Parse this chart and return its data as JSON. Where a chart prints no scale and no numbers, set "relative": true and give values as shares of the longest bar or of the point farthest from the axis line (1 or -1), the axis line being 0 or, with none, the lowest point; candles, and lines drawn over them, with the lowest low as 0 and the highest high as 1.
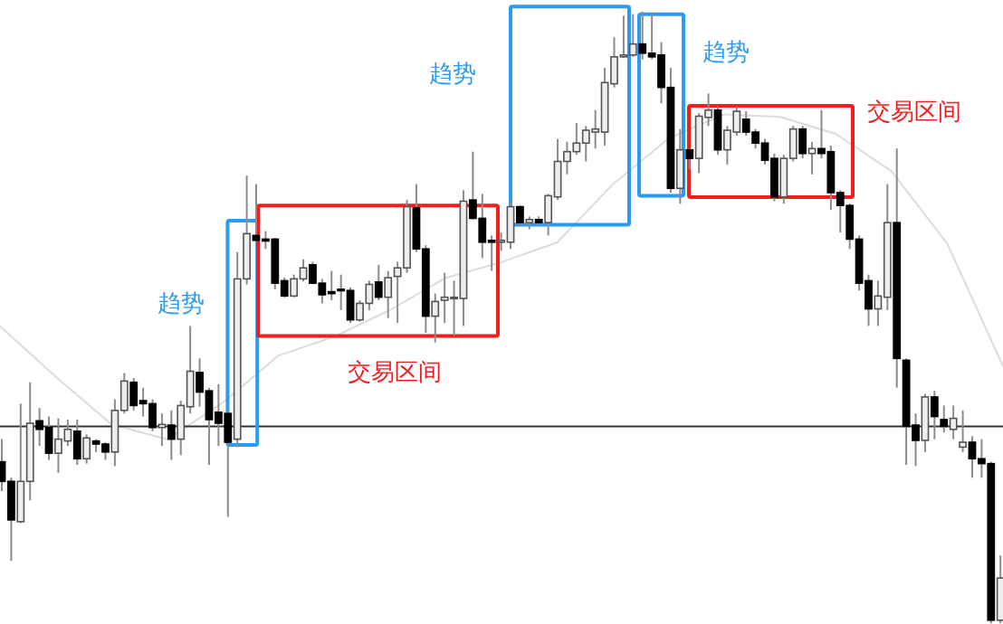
{
  "chart_data": [
    {
      "type": "candlestick",
      "relative": true,
      "categories": [
        null,
        null,
        null,
        null,
        null,
        null,
        null,
        null,
        null,
        null,
        null,
        null,
        null,
        null,
        null,
        null,
        null,
        null,
        null,
        null,
        null,
        null,
        null,
        null,
        null,
        null,
        null,
        null,
        null,
        null,
        null,
        null,
        null,
        null,
        null,
        null,
        null,
        null,
        null,
        null,
        null,
        null,
        null,
        null,
        null,
        null,
        null,
        null,
        null,
        null,
        null,
        null,
        null,
        null,
        null,
        null,
        null,
        null,
        null,
        null,
        null,
        null,
        null,
        null,
        null,
        null,
        null,
        null,
        null,
        null,
        null,
        null,
        null,
        null,
        null,
        null,
        null,
        null,
        null,
        null,
        null,
        null,
        null,
        null,
        null,
        null,
        null,
        null,
        null,
        null,
        null,
        null,
        null,
        null,
        null,
        null,
        null,
        null,
        null,
        null,
        null,
        null,
        null,
        null,
        null,
        null,
        null
      ],
      "ohlc": [
        [
          0.264,
          0.301,
          0.216,
          0.232
        ],
        [
          0.232,
          0.238,
          0.102,
          0.169
        ],
        [
          0.166,
          0.359,
          0.164,
          0.232
        ],
        [
          0.232,
          0.394,
          0.201,
          0.327
        ],
        [
          0.331,
          0.352,
          0.29,
          0.317
        ],
        [
          0.32,
          0.338,
          0.267,
          0.278
        ],
        [
          0.278,
          0.335,
          0.246,
          0.301
        ],
        [
          0.298,
          0.333,
          0.29,
          0.317
        ],
        [
          0.314,
          0.333,
          0.259,
          0.269
        ],
        [
          0.269,
          0.309,
          0.261,
          0.303
        ],
        [
          0.298,
          0.301,
          0.28,
          0.293
        ],
        [
          0.293,
          0.296,
          0.267,
          0.28
        ],
        [
          0.28,
          0.366,
          0.257,
          0.348
        ],
        [
          0.348,
          0.409,
          0.343,
          0.396
        ],
        [
          0.394,
          0.401,
          0.348,
          0.356
        ],
        [
          0.364,
          0.385,
          0.338,
          0.359
        ],
        [
          0.359,
          0.366,
          0.314,
          0.32
        ],
        [
          0.32,
          0.343,
          0.29,
          0.325
        ],
        [
          0.324,
          0.348,
          0.267,
          0.301
        ],
        [
          0.301,
          0.364,
          0.275,
          0.356
        ],
        [
          0.354,
          0.486,
          0.343,
          0.412
        ],
        [
          0.41,
          0.433,
          0.354,
          0.378
        ],
        [
          0.38,
          0.385,
          0.259,
          0.333
        ],
        [
          0.345,
          0.391,
          0.29,
          0.327
        ],
        [
          0.343,
          0.348,
          0.174,
          0.296
        ],
        [
          0.301,
          0.607,
          0.288,
          0.563
        ],
        [
          0.563,
          0.732,
          0.554,
          0.637
        ],
        [
          0.634,
          0.718,
          0.623,
          0.626
        ],
        [
          0.628,
          0.641,
          0.612,
          0.625
        ],
        [
          0.628,
          0.63,
          0.546,
          0.556
        ],
        [
          0.56,
          0.565,
          0.533,
          0.535
        ],
        [
          0.535,
          0.57,
          0.533,
          0.563
        ],
        [
          0.563,
          0.595,
          0.559,
          0.581
        ],
        [
          0.586,
          0.591,
          0.554,
          0.556
        ],
        [
          0.556,
          0.563,
          0.523,
          0.537
        ],
        [
          0.542,
          0.576,
          0.528,
          0.539
        ],
        [
          0.546,
          0.57,
          0.512,
          0.544
        ],
        [
          0.544,
          0.549,
          0.491,
          0.496
        ],
        [
          0.496,
          0.528,
          0.493,
          0.523
        ],
        [
          0.523,
          0.56,
          0.512,
          0.554
        ],
        [
          0.558,
          0.586,
          0.528,
          0.533
        ],
        [
          0.533,
          0.576,
          0.499,
          0.565
        ],
        [
          0.567,
          0.591,
          0.491,
          0.581
        ],
        [
          0.581,
          0.692,
          0.573,
          0.681
        ],
        [
          0.679,
          0.718,
          0.607,
          0.612
        ],
        [
          0.612,
          0.618,
          0.475,
          0.502
        ],
        [
          0.502,
          0.539,
          0.459,
          0.526
        ],
        [
          0.528,
          0.573,
          0.491,
          0.533
        ],
        [
          0.531,
          0.56,
          0.47,
          0.533
        ],
        [
          0.531,
          0.708,
          0.486,
          0.69
        ],
        [
          0.692,
          0.771,
          0.66,
          0.662
        ],
        [
          0.662,
          0.702,
          0.597,
          0.623
        ],
        [
          0.626,
          0.634,
          0.576,
          0.623
        ],
        [
          0.623,
          0.639,
          0.609,
          0.626
        ],
        [
          0.623,
          0.69,
          0.612,
          0.681
        ],
        [
          0.681,
          0.683,
          0.649,
          0.655
        ],
        [
          0.655,
          0.665,
          0.644,
          0.66
        ],
        [
          0.66,
          0.665,
          0.649,
          0.655
        ],
        [
          0.655,
          0.702,
          0.634,
          0.699
        ],
        [
          0.697,
          0.792,
          0.692,
          0.755
        ],
        [
          0.755,
          0.787,
          0.734,
          0.771
        ],
        [
          0.771,
          0.818,
          0.766,
          0.785
        ],
        [
          0.785,
          0.813,
          0.755,
          0.806
        ],
        [
          0.803,
          0.839,
          0.776,
          0.808
        ],
        [
          0.803,
          0.908,
          0.781,
          0.884
        ],
        [
          0.882,
          0.958,
          0.876,
          0.926
        ],
        [
          0.926,
          0.993,
          0.924,
          0.929
        ],
        [
          0.929,
          0.996,
          0.926,
          0.947
        ],
        [
          0.947,
          1.0,
          0.922,
          0.932
        ],
        [
          0.932,
          0.998,
          0.922,
          0.926
        ],
        [
          0.929,
          0.95,
          0.85,
          0.876
        ],
        [
          0.876,
          0.908,
          0.704,
          0.711
        ],
        [
          0.711,
          0.808,
          0.686,
          0.774
        ],
        [
          0.774,
          0.776,
          0.742,
          0.76
        ],
        [
          0.76,
          0.834,
          0.736,
          0.829
        ],
        [
          0.827,
          0.866,
          0.813,
          0.839
        ],
        [
          0.839,
          0.845,
          0.766,
          0.774
        ],
        [
          0.774,
          0.813,
          0.75,
          0.806
        ],
        [
          0.803,
          0.845,
          0.797,
          0.837
        ],
        [
          0.824,
          0.837,
          0.797,
          0.803
        ],
        [
          0.803,
          0.808,
          0.776,
          0.785
        ],
        [
          0.785,
          0.792,
          0.75,
          0.757
        ],
        [
          0.76,
          0.768,
          0.69,
          0.697
        ],
        [
          0.697,
          0.766,
          0.686,
          0.76
        ],
        [
          0.76,
          0.813,
          0.755,
          0.808
        ],
        [
          0.808,
          0.813,
          0.76,
          0.768
        ],
        [
          0.768,
          0.787,
          0.734,
          0.776
        ],
        [
          0.776,
          0.839,
          0.76,
          0.768
        ],
        [
          0.771,
          0.781,
          0.676,
          0.704
        ],
        [
          0.704,
          0.708,
          0.639,
          0.683
        ],
        [
          0.683,
          0.686,
          0.612,
          0.628
        ],
        [
          0.628,
          0.634,
          0.544,
          0.556
        ],
        [
          0.56,
          0.57,
          0.486,
          0.514
        ],
        [
          0.514,
          0.56,
          0.486,
          0.535
        ],
        [
          0.533,
          0.718,
          0.512,
          0.655
        ],
        [
          0.655,
          0.776,
          0.385,
          0.433
        ],
        [
          0.43,
          0.433,
          0.259,
          0.322
        ],
        [
          0.324,
          0.343,
          0.257,
          0.299
        ],
        [
          0.299,
          0.375,
          0.28,
          0.37
        ],
        [
          0.37,
          0.38,
          0.301,
          0.338
        ],
        [
          0.333,
          0.356,
          0.312,
          0.322
        ],
        [
          0.317,
          0.356,
          0.301,
          0.335
        ],
        [
          0.288,
          0.348,
          0.28,
          0.296
        ],
        [
          0.296,
          0.306,
          0.238,
          0.269
        ],
        [
          0.269,
          0.301,
          0.238,
          0.261
        ],
        [
          0.261,
          0.264,
          0,
          0.005
        ],
        [
          0.005,
          0.111,
          0,
          0.074
        ]
      ],
      "ref_lines": [
        {
          "axis": "y",
          "value": 0.322,
          "color": "#333333"
        }
      ],
      "annotations": [
        "趋势",
        "交易区间",
        "趋势",
        "趋势",
        "交易区间"
      ]
    },
    {
      "type": "line",
      "relative": true,
      "categories": [
        null,
        null,
        null,
        null,
        null,
        null,
        null,
        null,
        null,
        null,
        null,
        null,
        null,
        null,
        null,
        null,
        null,
        null,
        null
      ],
      "series": [
        {
          "color": "#dcdcdc",
          "values": [
            0.348,
            0.193,
            0.046,
            0,
            0.113,
            0.258,
            0.316,
            0.398,
            0.497,
            0.545,
            0.606,
            0.785,
            0.926,
            1,
            0.992,
            0.94,
            0.825,
            0.602,
            0.225
          ]
        }
      ]
    }
  ]
}
